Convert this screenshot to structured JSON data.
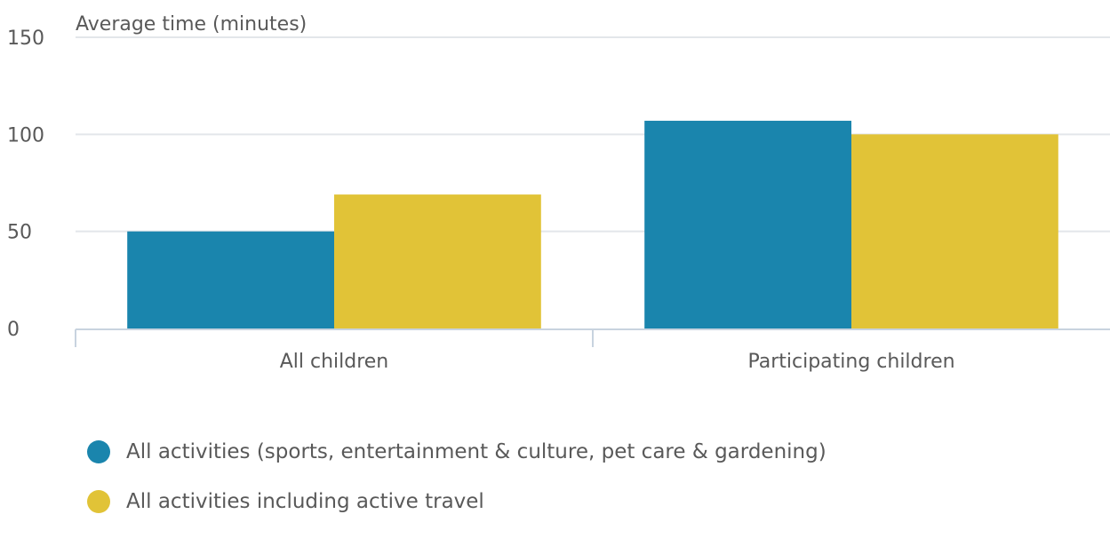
{
  "chart_data": {
    "type": "bar",
    "ylabel": "Average time (minutes)",
    "xlabel": "",
    "categories": [
      "All children",
      "Participating children"
    ],
    "ylim": [
      0,
      150
    ],
    "yticks": [
      0,
      50,
      100,
      150
    ],
    "grid": true,
    "legend_position": "bottom-left",
    "series": [
      {
        "name": "All activities (sports, entertainment & culture, pet care & gardening)",
        "color": "#1a85ad",
        "values": [
          50,
          107
        ]
      },
      {
        "name": "All activities including active travel",
        "color": "#e1c337",
        "values": [
          69,
          100
        ]
      }
    ]
  }
}
